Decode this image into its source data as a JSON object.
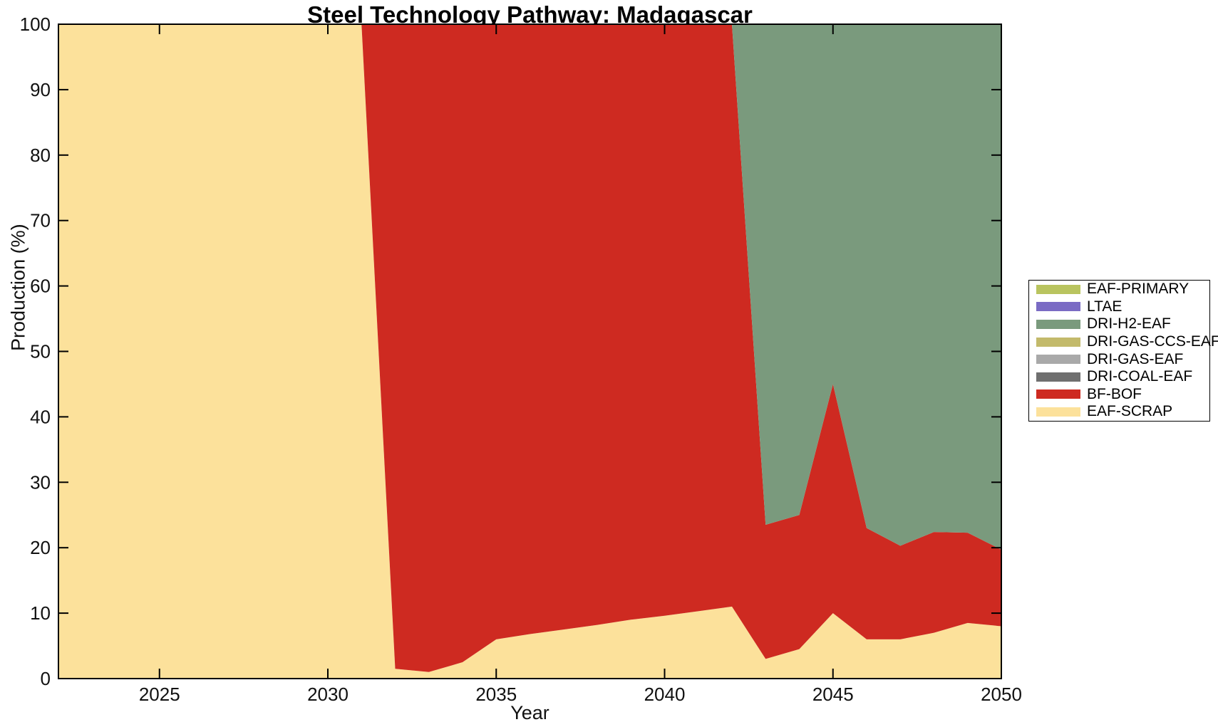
{
  "figure": {
    "title": "Steel Technology Pathway: Madagascar"
  },
  "axes": {
    "xlabel": "Year",
    "ylabel": "Production (%)",
    "x_ticks": [
      2025,
      2030,
      2035,
      2040,
      2045,
      2050
    ],
    "y_ticks": [
      0,
      10,
      20,
      30,
      40,
      50,
      60,
      70,
      80,
      90,
      100
    ]
  },
  "chart_data": {
    "type": "area",
    "stacked": true,
    "title": "Steel Technology Pathway: Madagascar",
    "xlabel": "Year",
    "ylabel": "Production (%)",
    "xlim": [
      2022,
      2050
    ],
    "ylim": [
      0,
      100
    ],
    "grid": false,
    "legend_position": "right-outside",
    "x": [
      2022,
      2023,
      2024,
      2025,
      2026,
      2027,
      2028,
      2029,
      2030,
      2031,
      2032,
      2033,
      2034,
      2035,
      2036,
      2037,
      2038,
      2039,
      2040,
      2041,
      2042,
      2043,
      2044,
      2045,
      2046,
      2047,
      2048,
      2049,
      2050
    ],
    "series": [
      {
        "name": "EAF-SCRAP",
        "color": "#fce19b",
        "values": [
          100,
          100,
          100,
          100,
          100,
          100,
          100,
          100,
          100,
          100,
          1.5,
          1,
          2.5,
          6,
          6.8,
          7.5,
          8.2,
          9,
          9.6,
          10.3,
          11,
          3,
          4.5,
          10,
          6,
          6,
          7,
          8.5,
          8
        ]
      },
      {
        "name": "BF-BOF",
        "color": "#ce2a21",
        "values": [
          0,
          0,
          0,
          0,
          0,
          0,
          0,
          0,
          0,
          0,
          98.5,
          99,
          97.5,
          94,
          93.2,
          92.5,
          91.8,
          91,
          90.4,
          89.7,
          89,
          20.5,
          20.5,
          35,
          17,
          14.3,
          15.4,
          13.8,
          11.7
        ]
      },
      {
        "name": "DRI-COAL-EAF",
        "color": "#6f6f6f",
        "values": [
          0,
          0,
          0,
          0,
          0,
          0,
          0,
          0,
          0,
          0,
          0,
          0,
          0,
          0,
          0,
          0,
          0,
          0,
          0,
          0,
          0,
          0,
          0,
          0,
          0,
          0,
          0,
          0,
          0
        ]
      },
      {
        "name": "DRI-GAS-EAF",
        "color": "#a9a9a9",
        "values": [
          0,
          0,
          0,
          0,
          0,
          0,
          0,
          0,
          0,
          0,
          0,
          0,
          0,
          0,
          0,
          0,
          0,
          0,
          0,
          0,
          0,
          0,
          0,
          0,
          0,
          0,
          0,
          0,
          0
        ]
      },
      {
        "name": "DRI-GAS-CCS-EAF",
        "color": "#c3ba6b",
        "values": [
          0,
          0,
          0,
          0,
          0,
          0,
          0,
          0,
          0,
          0,
          0,
          0,
          0,
          0,
          0,
          0,
          0,
          0,
          0,
          0,
          0,
          0,
          0,
          0,
          0,
          0,
          0,
          0,
          0
        ]
      },
      {
        "name": "DRI-H2-EAF",
        "color": "#7a9a7d",
        "values": [
          0,
          0,
          0,
          0,
          0,
          0,
          0,
          0,
          0,
          0,
          0,
          0,
          0,
          0,
          0,
          0,
          0,
          0,
          0,
          0,
          0,
          76.5,
          75,
          55,
          77,
          79.7,
          77.6,
          77.7,
          80.3
        ]
      },
      {
        "name": "LTAE",
        "color": "#7a6bc4",
        "values": [
          0,
          0,
          0,
          0,
          0,
          0,
          0,
          0,
          0,
          0,
          0,
          0,
          0,
          0,
          0,
          0,
          0,
          0,
          0,
          0,
          0,
          0,
          0,
          0,
          0,
          0,
          0,
          0,
          0
        ]
      },
      {
        "name": "EAF-PRIMARY",
        "color": "#b9c45f",
        "values": [
          0,
          0,
          0,
          0,
          0,
          0,
          0,
          0,
          0,
          0,
          0,
          0,
          0,
          0,
          0,
          0,
          0,
          0,
          0,
          0,
          0,
          0,
          0,
          0,
          0,
          0,
          0,
          0,
          0
        ]
      }
    ],
    "legend_order_top_to_bottom": [
      "EAF-PRIMARY",
      "LTAE",
      "DRI-H2-EAF",
      "DRI-GAS-CCS-EAF",
      "DRI-GAS-EAF",
      "DRI-COAL-EAF",
      "BF-BOF",
      "EAF-SCRAP"
    ]
  }
}
